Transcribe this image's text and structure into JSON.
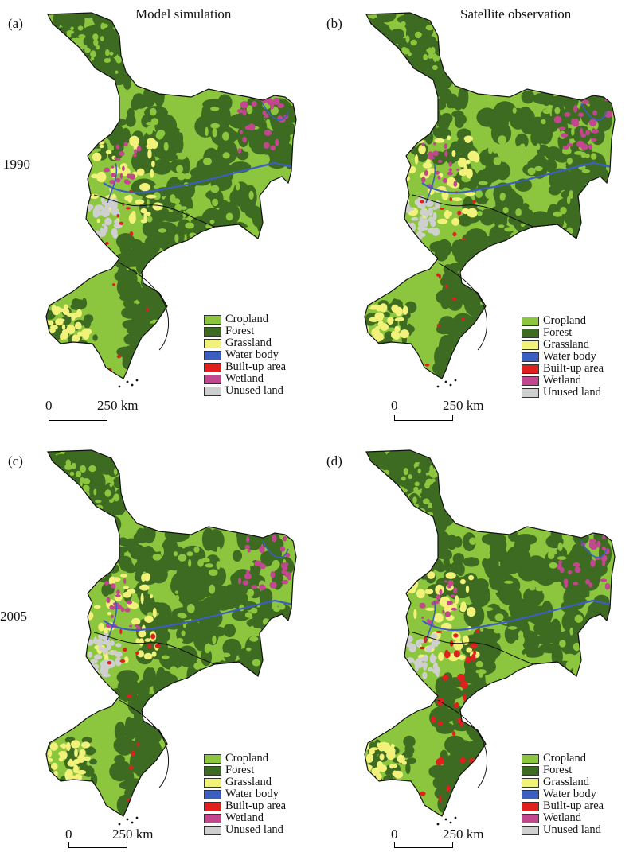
{
  "columns": [
    {
      "title": "Model simulation"
    },
    {
      "title": "Satellite observation"
    }
  ],
  "rows": [
    {
      "year": "1990"
    },
    {
      "year": "2005"
    }
  ],
  "panels": [
    {
      "label": "(a)"
    },
    {
      "label": "(b)"
    },
    {
      "label": "(c)"
    },
    {
      "label": "(d)"
    }
  ],
  "legend": [
    {
      "label": "Cropland",
      "color": "#8cc63f"
    },
    {
      "label": "Forest",
      "color": "#3d6b21"
    },
    {
      "label": "Grassland",
      "color": "#f2f27a"
    },
    {
      "label": "Water body",
      "color": "#3b5fc0"
    },
    {
      "label": "Built-up area",
      "color": "#e01f1f"
    },
    {
      "label": "Wetland",
      "color": "#c2478f"
    },
    {
      "label": "Unused land",
      "color": "#cfcfcf"
    }
  ],
  "scale_bar": {
    "start": "0",
    "end": "250 km"
  }
}
